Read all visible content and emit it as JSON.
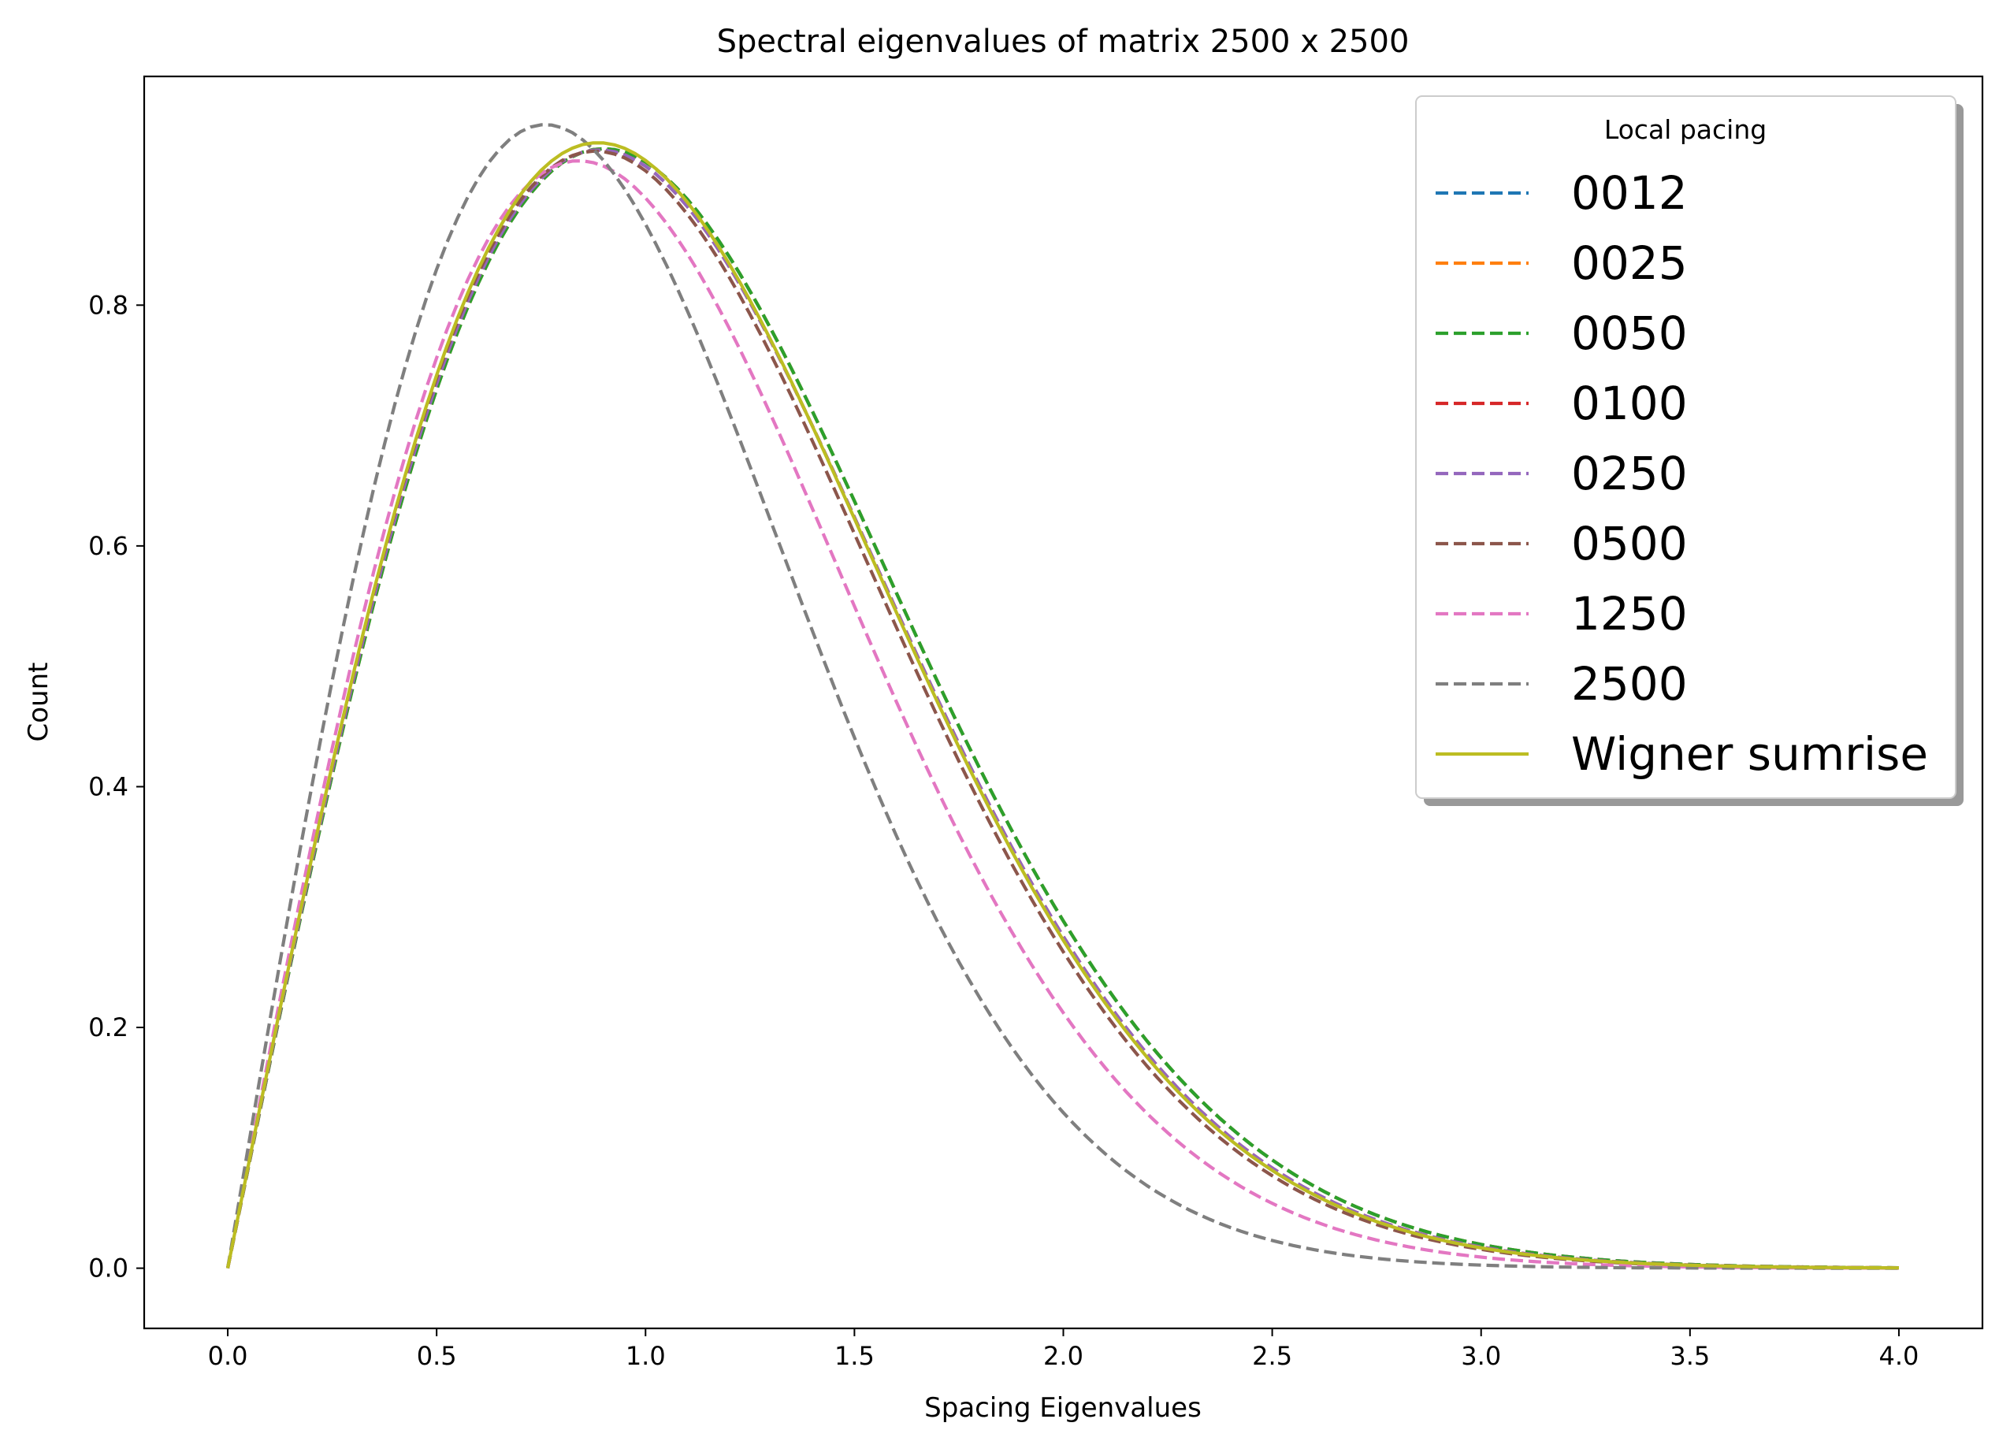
{
  "chart_data": {
    "type": "line",
    "title": "Spectral eigenvalues of matrix 2500 x 2500",
    "xlabel": "Spacing Eigenvalues",
    "ylabel": "Count",
    "xlim": [
      -0.2,
      4.2
    ],
    "ylim": [
      -0.05,
      0.99
    ],
    "xticks": [
      0.0,
      0.5,
      1.0,
      1.5,
      2.0,
      2.5,
      3.0,
      3.5,
      4.0
    ],
    "xtick_labels": [
      "0.0",
      "0.5",
      "1.0",
      "1.5",
      "2.0",
      "2.5",
      "3.0",
      "3.5",
      "4.0"
    ],
    "yticks": [
      0.0,
      0.2,
      0.4,
      0.6,
      0.8
    ],
    "ytick_labels": [
      "0.0",
      "0.2",
      "0.4",
      "0.6",
      "0.8"
    ],
    "grid": false,
    "legend": {
      "title": "Local pacing",
      "placement": "top-right",
      "shadow": true
    },
    "x_range": [
      0,
      4
    ],
    "series": [
      {
        "name": "0012",
        "color": "#1f77b4",
        "style": "dashed",
        "peak_x": 0.9,
        "peak_y": 0.93
      },
      {
        "name": "0025",
        "color": "#ff7f0e",
        "style": "dashed",
        "peak_x": 0.9,
        "peak_y": 0.93
      },
      {
        "name": "0050",
        "color": "#2ca02c",
        "style": "dashed",
        "peak_x": 0.9,
        "peak_y": 0.93
      },
      {
        "name": "0100",
        "color": "#d62728",
        "style": "dashed",
        "peak_x": 0.89,
        "peak_y": 0.929
      },
      {
        "name": "0250",
        "color": "#9467bd",
        "style": "dashed",
        "peak_x": 0.89,
        "peak_y": 0.929
      },
      {
        "name": "0500",
        "color": "#8c564b",
        "style": "dashed",
        "peak_x": 0.88,
        "peak_y": 0.928
      },
      {
        "name": "1250",
        "color": "#e377c2",
        "style": "dashed",
        "peak_x": 0.84,
        "peak_y": 0.92
      },
      {
        "name": "2500",
        "color": "#7f7f7f",
        "style": "dashed",
        "peak_x": 0.76,
        "peak_y": 0.95
      },
      {
        "name": "Wigner sumrise",
        "color": "#bcbd22",
        "style": "solid",
        "peak_x": 0.886,
        "peak_y": 0.935
      }
    ]
  }
}
